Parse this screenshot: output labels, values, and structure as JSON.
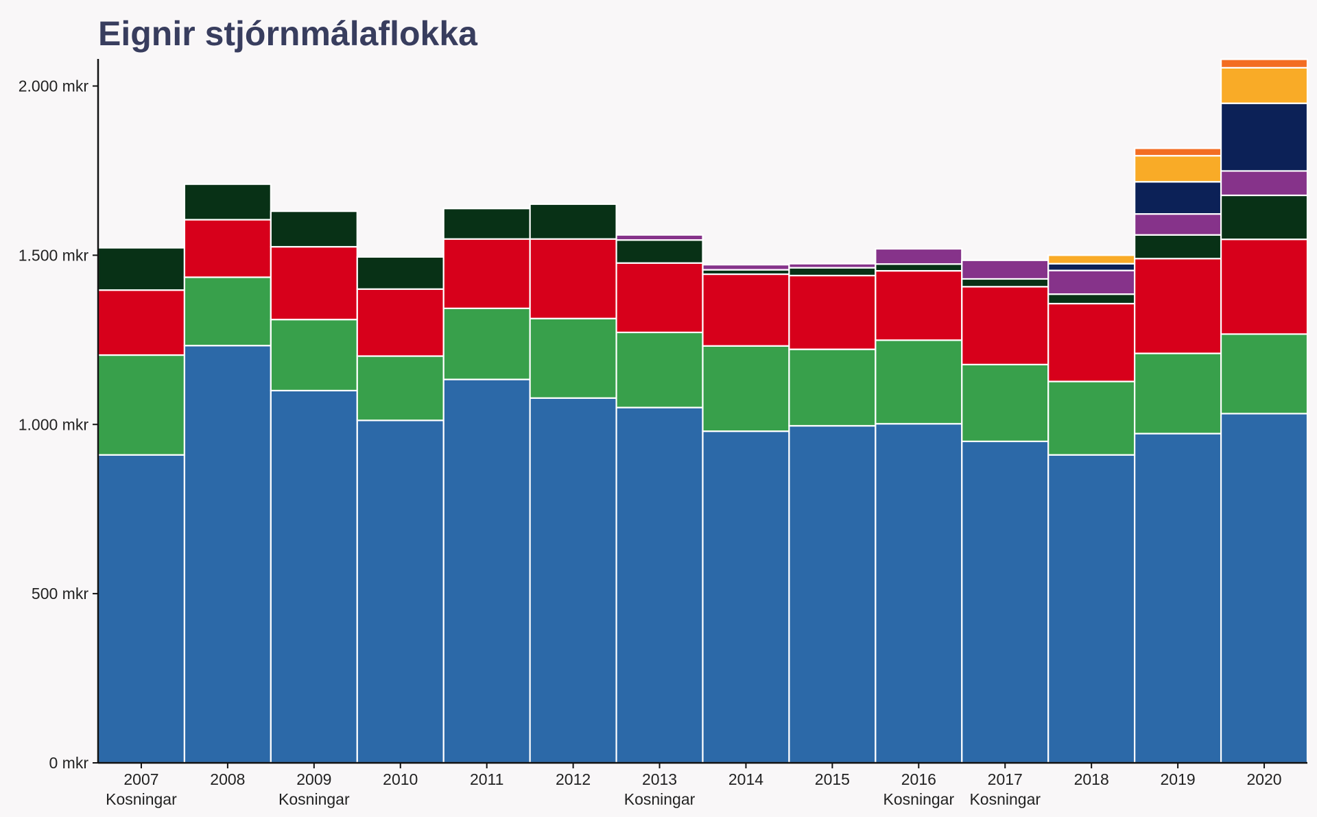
{
  "chart_data": {
    "type": "bar",
    "stacked": true,
    "title": "Eignir stjórnmálaflokka",
    "xlabel": "",
    "ylabel": "",
    "ylim": [
      0,
      2080
    ],
    "yticks": [
      0,
      500,
      1000,
      1500,
      2000
    ],
    "ytick_labels": [
      "0 mkr",
      "500 mkr",
      "1.000 mkr",
      "1.500 mkr",
      "2.000 mkr"
    ],
    "grid": false,
    "legend": "none",
    "categories": [
      "2007",
      "2008",
      "2009",
      "2010",
      "2011",
      "2012",
      "2013",
      "2014",
      "2015",
      "2016",
      "2017",
      "2018",
      "2019",
      "2020"
    ],
    "category_notes": [
      "Kosningar",
      "",
      "Kosningar",
      "",
      "",
      "",
      "Kosningar",
      "",
      "",
      "Kosningar",
      "Kosningar",
      "",
      "",
      ""
    ],
    "series": [
      {
        "color": "#2c69a8",
        "values": [
          910,
          1233,
          1100,
          1012,
          1133,
          1078,
          1050,
          980,
          996,
          1002,
          950,
          910,
          973,
          1032
        ]
      },
      {
        "color": "#38a04b",
        "values": [
          295,
          202,
          210,
          190,
          210,
          235,
          222,
          252,
          226,
          247,
          227,
          217,
          237,
          235
        ]
      },
      {
        "color": "#d7001b",
        "values": [
          192,
          170,
          215,
          198,
          205,
          235,
          205,
          212,
          218,
          205,
          230,
          230,
          280,
          280
        ]
      },
      {
        "color": "#083116",
        "values": [
          125,
          105,
          105,
          95,
          90,
          103,
          68,
          13,
          23,
          20,
          23,
          28,
          70,
          130
        ]
      },
      {
        "color": "#86338a",
        "values": [
          0,
          0,
          0,
          0,
          0,
          0,
          15,
          15,
          12,
          45,
          55,
          70,
          62,
          72
        ]
      },
      {
        "color": "#0c2157",
        "values": [
          0,
          0,
          0,
          0,
          0,
          0,
          0,
          0,
          0,
          0,
          0,
          20,
          95,
          200
        ]
      },
      {
        "color": "#f9ab27",
        "values": [
          0,
          0,
          0,
          0,
          0,
          0,
          0,
          0,
          0,
          0,
          0,
          25,
          77,
          105
        ]
      },
      {
        "color": "#f36d22",
        "values": [
          0,
          0,
          0,
          0,
          0,
          0,
          0,
          0,
          0,
          0,
          0,
          0,
          22,
          25
        ]
      }
    ]
  }
}
